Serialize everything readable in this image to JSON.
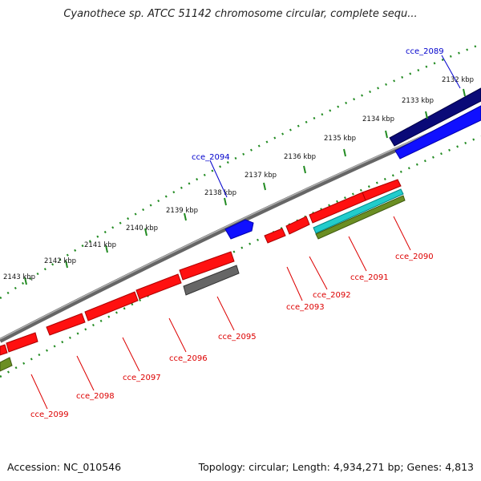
{
  "title": "Cyanothece sp. ATCC 51142 chromosome circular, complete sequ...",
  "footer": {
    "accession": "Accession: NC_010546",
    "topology": "Topology: circular; Length: 4,934,271 bp; Genes: 4,813"
  },
  "ticks": [
    "2132 kbp",
    "2133 kbp",
    "2134 kbp",
    "2135 kbp",
    "2136 kbp",
    "2137 kbp",
    "2138 kbp",
    "2139 kbp",
    "2140 kbp",
    "2141 kbp",
    "2142 kbp",
    "2143 kbp"
  ],
  "colors": {
    "forward_gene": "#0000ff",
    "reverse_gene": "#ff0000",
    "forward_label": "#0000cc",
    "reverse_label": "#dd0000",
    "backbone": "#808080",
    "tick": "#228b22",
    "navy": "#000080",
    "cyan": "#00cccc",
    "olive": "#6b8e23",
    "gray_gene": "#666666"
  },
  "genes": [
    {
      "id": "cce_2089",
      "strand": "forward"
    },
    {
      "id": "cce_2094",
      "strand": "forward"
    },
    {
      "id": "cce_2090",
      "strand": "reverse"
    },
    {
      "id": "cce_2091",
      "strand": "reverse"
    },
    {
      "id": "cce_2092",
      "strand": "reverse"
    },
    {
      "id": "cce_2093",
      "strand": "reverse"
    },
    {
      "id": "cce_2095",
      "strand": "reverse"
    },
    {
      "id": "cce_2096",
      "strand": "reverse"
    },
    {
      "id": "cce_2097",
      "strand": "reverse"
    },
    {
      "id": "cce_2098",
      "strand": "reverse"
    },
    {
      "id": "cce_2099",
      "strand": "reverse"
    }
  ]
}
